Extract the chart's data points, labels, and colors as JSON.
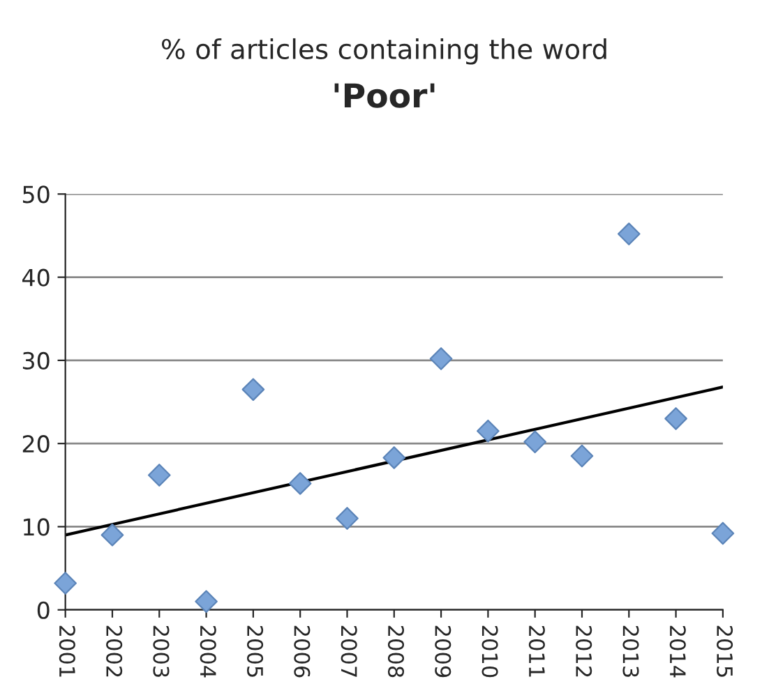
{
  "chart_data": {
    "type": "scatter",
    "title": "% of articles containing the word",
    "subtitle": "'Poor'",
    "x": [
      2001,
      2002,
      2003,
      2004,
      2005,
      2006,
      2007,
      2008,
      2009,
      2010,
      2011,
      2012,
      2013,
      2014,
      2015
    ],
    "series": [
      {
        "color": "#7ba4d8",
        "marker": "diamond",
        "values": [
          3.2,
          9,
          16.2,
          1,
          26.5,
          15.2,
          11,
          18.3,
          30.2,
          21.5,
          20.2,
          18.5,
          45.2,
          23,
          9.2
        ]
      },
      {
        "type": "line",
        "color": "#000000",
        "marker": "none",
        "x": [
          2001,
          2015
        ],
        "values": [
          9,
          26.8
        ]
      }
    ],
    "xlim": [
      2001,
      2015
    ],
    "xticks": [
      2001,
      2002,
      2003,
      2004,
      2005,
      2006,
      2007,
      2008,
      2009,
      2010,
      2011,
      2012,
      2013,
      2014,
      2015
    ],
    "ylim": [
      0,
      50
    ],
    "yticks": [
      0,
      10,
      20,
      30,
      40,
      50
    ],
    "grid": "y",
    "legend": false
  }
}
